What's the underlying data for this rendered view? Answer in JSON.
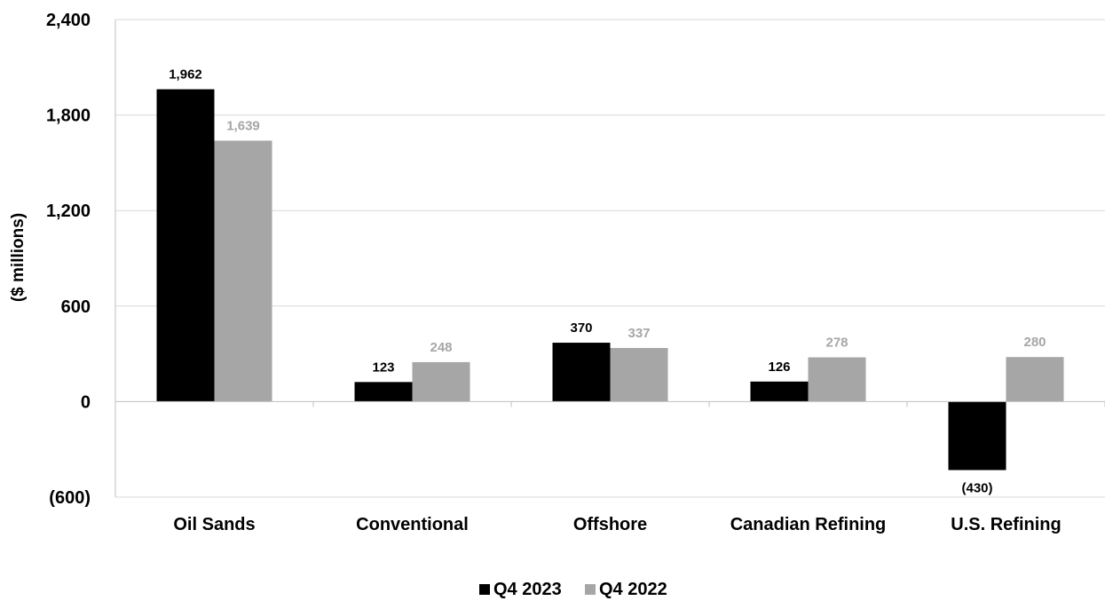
{
  "chart_data": {
    "type": "bar",
    "title": "",
    "xlabel": "",
    "ylabel": "($ millions)",
    "ylim": [
      -600,
      2400
    ],
    "yticks": [
      -600,
      0,
      600,
      1200,
      1800,
      2400
    ],
    "ytick_labels": [
      "(600)",
      "0",
      "600",
      "1,200",
      "1,800",
      "2,400"
    ],
    "grid": true,
    "legend_position": "bottom",
    "categories": [
      "Oil Sands",
      "Conventional",
      "Offshore",
      "Canadian Refining",
      "U.S. Refining"
    ],
    "series": [
      {
        "name": "Q4 2023",
        "color": "#000000",
        "label_color": "#000000",
        "values": [
          1962,
          123,
          370,
          126,
          -430
        ],
        "labels": [
          "1,962",
          "123",
          "370",
          "126",
          "(430)"
        ]
      },
      {
        "name": "Q4 2022",
        "color": "#a6a6a6",
        "label_color": "#a6a6a6",
        "values": [
          1639,
          248,
          337,
          278,
          280
        ],
        "labels": [
          "1,639",
          "248",
          "337",
          "278",
          "280"
        ]
      }
    ]
  }
}
